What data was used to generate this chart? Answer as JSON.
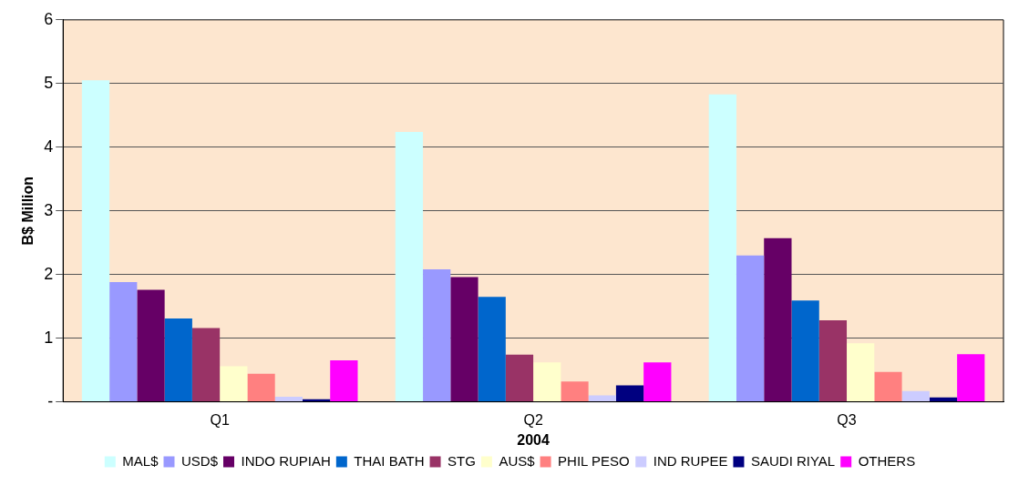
{
  "chart_data": {
    "type": "bar",
    "xlabel": "2004",
    "ylabel": "B$ Million",
    "categories": [
      "Q1",
      "Q2",
      "Q3"
    ],
    "series": [
      {
        "name": "MAL$",
        "color": "#ccffff",
        "values": [
          5.05,
          4.24,
          4.83
        ]
      },
      {
        "name": "USD$",
        "color": "#9999ff",
        "values": [
          1.88,
          2.08,
          2.3
        ]
      },
      {
        "name": "INDO RUPIAH",
        "color": "#660066",
        "values": [
          1.76,
          1.96,
          2.57
        ]
      },
      {
        "name": "THAI BATH",
        "color": "#0066cc",
        "values": [
          1.31,
          1.65,
          1.59
        ]
      },
      {
        "name": "STG",
        "color": "#993366",
        "values": [
          1.16,
          0.74,
          1.28
        ]
      },
      {
        "name": "AUS$",
        "color": "#ffffcc",
        "values": [
          0.56,
          0.62,
          0.92
        ]
      },
      {
        "name": "PHIL PESO",
        "color": "#ff8080",
        "values": [
          0.44,
          0.32,
          0.47
        ]
      },
      {
        "name": "IND RUPEE",
        "color": "#ccccff",
        "values": [
          0.08,
          0.1,
          0.17
        ]
      },
      {
        "name": "SAUDI RIYAL",
        "color": "#000080",
        "values": [
          0.04,
          0.26,
          0.07
        ]
      },
      {
        "name": "OTHERS",
        "color": "#ff00ff",
        "values": [
          0.65,
          0.62,
          0.75
        ]
      }
    ],
    "ylim": [
      0,
      6
    ],
    "yticks": [
      {
        "value": 0,
        "label": "-"
      },
      1,
      2,
      3,
      4,
      5,
      6
    ],
    "grid": "y",
    "legend": "bottom"
  }
}
